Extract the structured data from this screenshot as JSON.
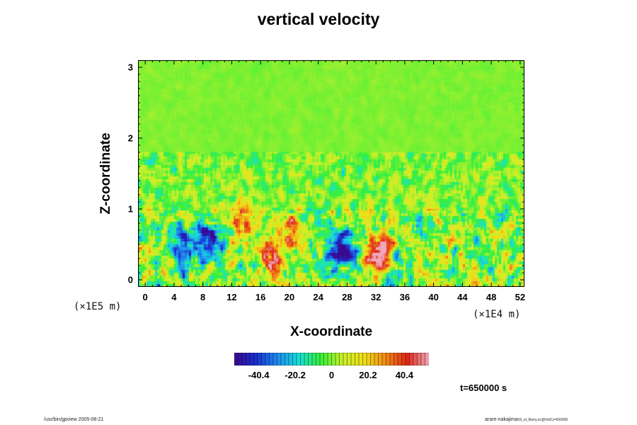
{
  "chart_data": {
    "type": "heatmap",
    "title": "vertical velocity",
    "xlabel": "X-coordinate",
    "ylabel": "Z-coordinate",
    "x_ticks": [
      "0",
      "4",
      "8",
      "12",
      "16",
      "20",
      "24",
      "28",
      "32",
      "36",
      "40",
      "44",
      "48",
      "52"
    ],
    "y_ticks": [
      "0",
      "1",
      "2",
      "3"
    ],
    "x_scale_note": "(×1E4 m)",
    "y_scale_note": "(×1E5 m)",
    "xlim": [
      -1,
      52.6
    ],
    "ylim": [
      -0.1,
      3.1
    ],
    "colorbar": {
      "ticks": [
        "-40.4",
        "-20.2",
        "0",
        "20.2",
        "40.4"
      ],
      "range": [
        -54,
        54
      ],
      "colormap": [
        "#3b0a8c",
        "#1a2fcf",
        "#1f8cf0",
        "#18e0d8",
        "#36f03a",
        "#c8f02a",
        "#f0e01a",
        "#f08a16",
        "#e02818",
        "#f0a8b8"
      ]
    },
    "regions": [
      {
        "x": 5,
        "z": 0.4,
        "value": -36
      },
      {
        "x": 8.5,
        "z": 0.55,
        "value": -46
      },
      {
        "x": 26.5,
        "z": 0.45,
        "value": -38
      },
      {
        "x": 28.5,
        "z": 0.4,
        "value": -30
      },
      {
        "x": 13.5,
        "z": 0.85,
        "value": 34
      },
      {
        "x": 17.5,
        "z": 0.35,
        "value": 44
      },
      {
        "x": 20.5,
        "z": 0.7,
        "value": 36
      },
      {
        "x": 33,
        "z": 0.45,
        "value": 38
      },
      {
        "x": 31.5,
        "z": 0.3,
        "value": 40
      }
    ]
  },
  "annotation_time": "t=650000 s",
  "footer_left": "/usr/bin/gpview 2005-08-21",
  "footer_right": "arare-nakajima",
  "footer_right_sub": "03_el_Barry.nc@Vel2,t=650000"
}
